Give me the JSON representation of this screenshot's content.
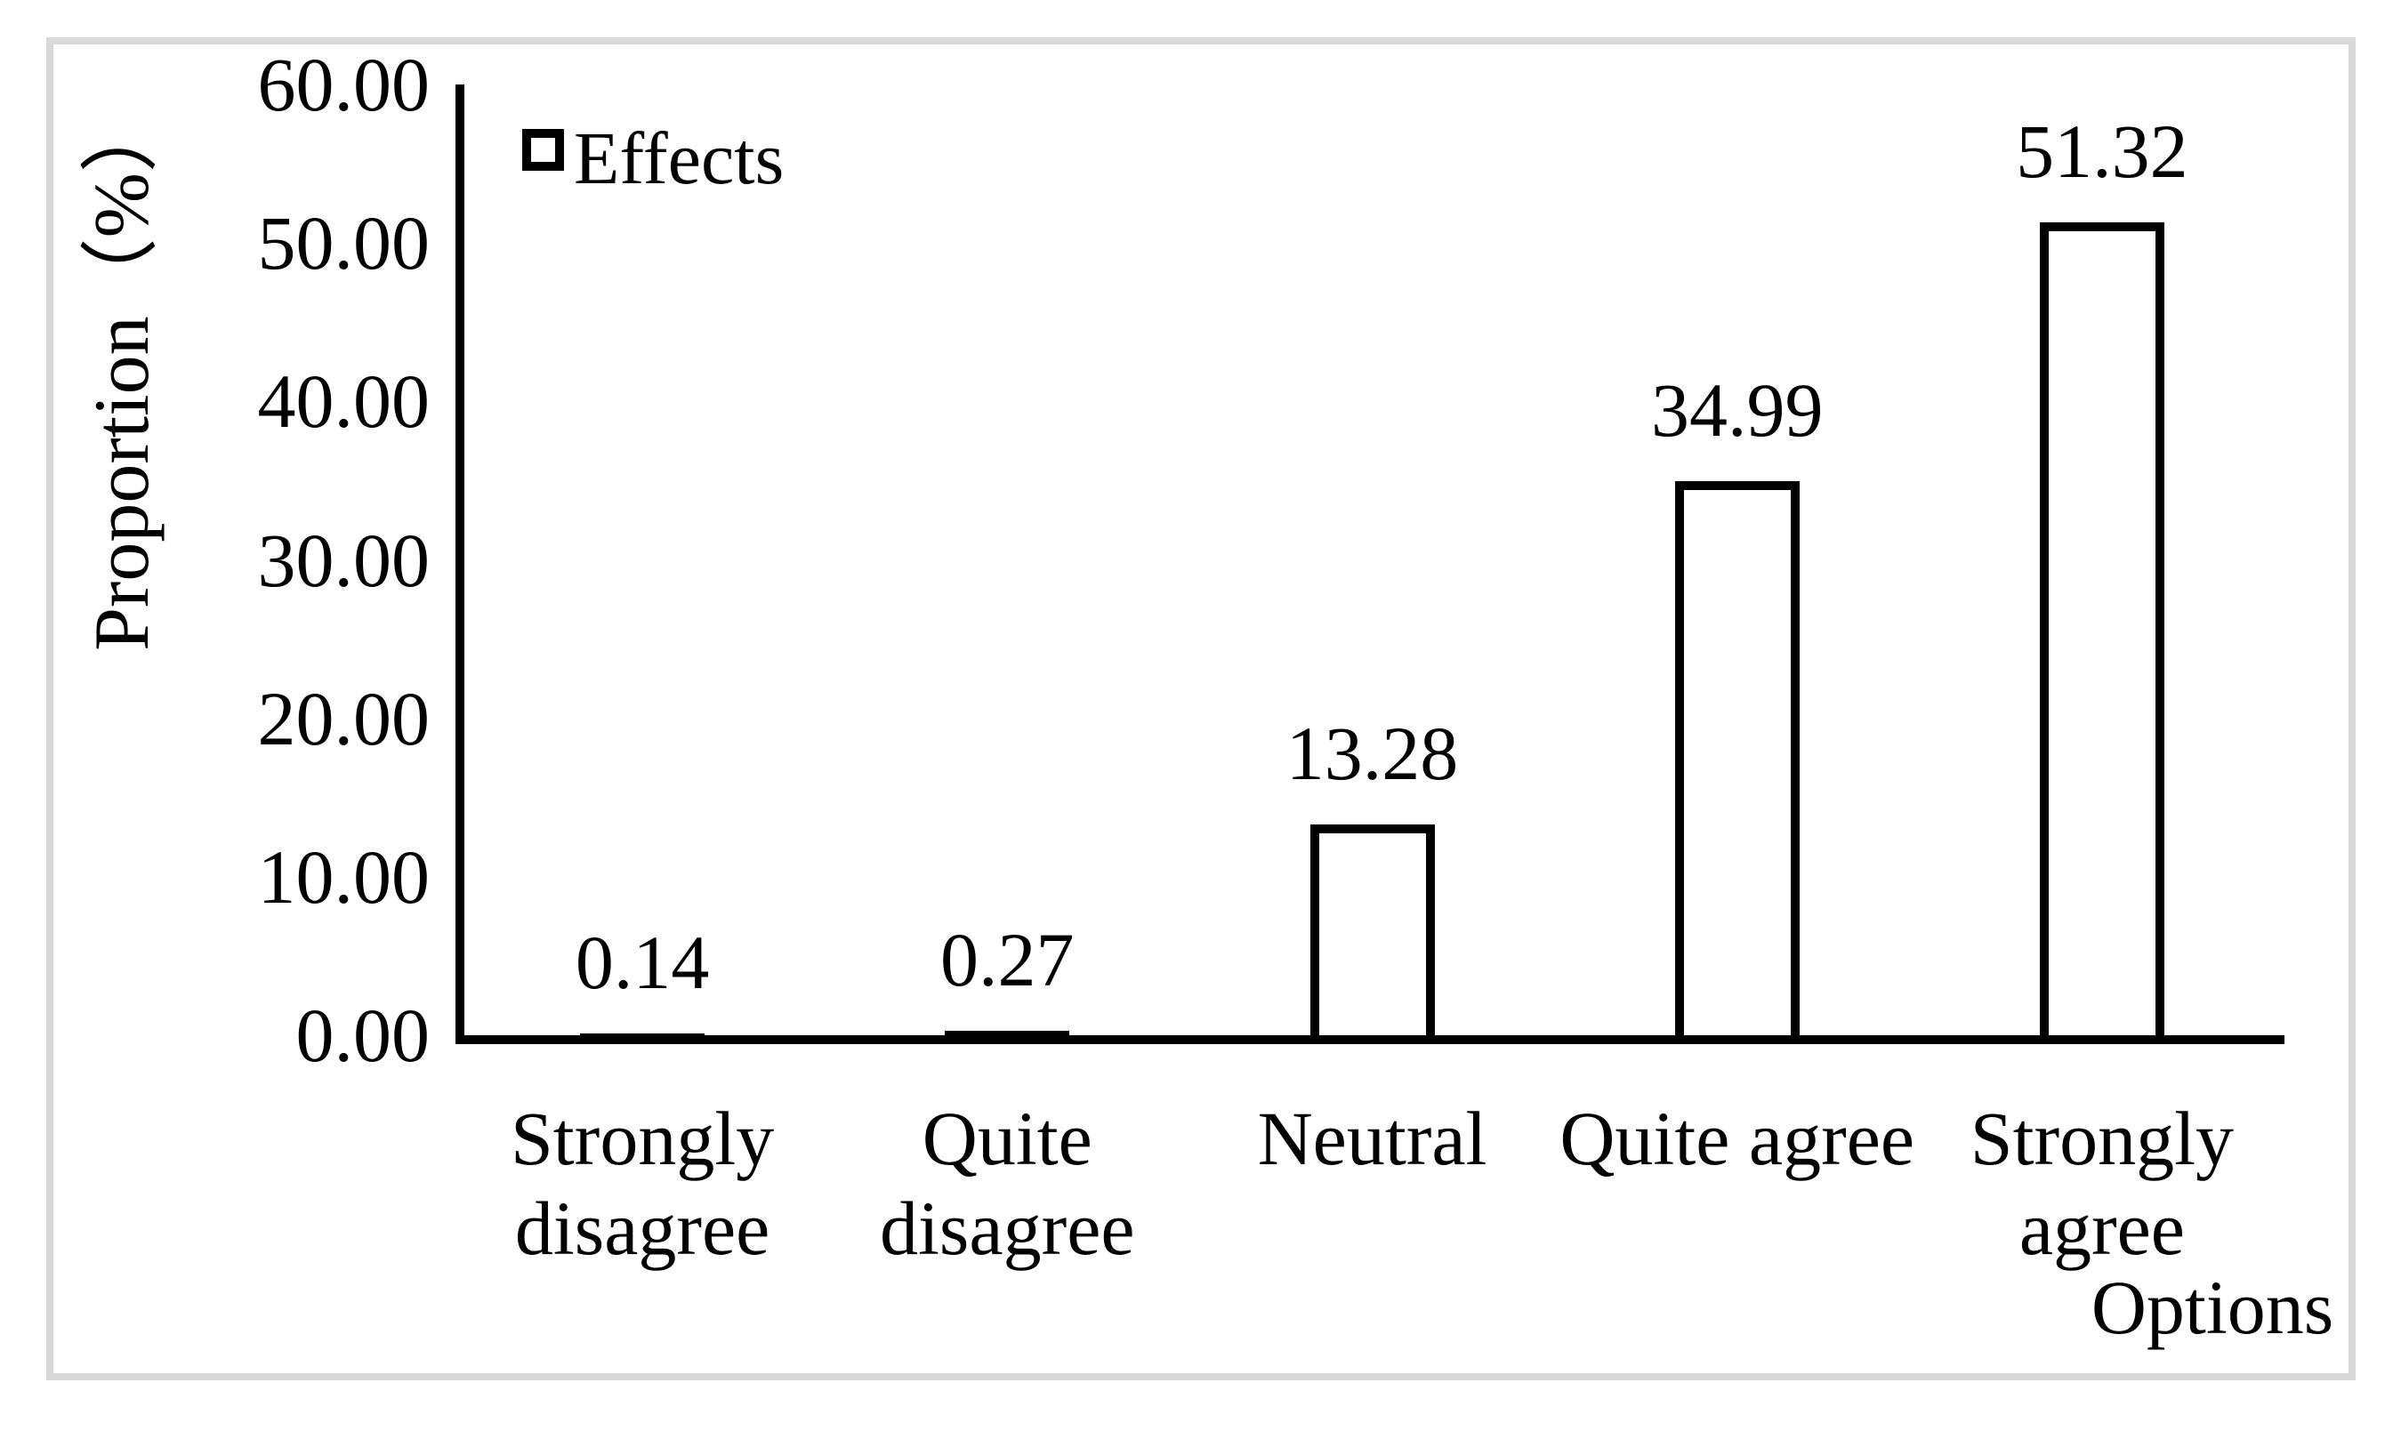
{
  "chart": {
    "legend_label": "Effects",
    "y_axis_title": "Proportion（%）",
    "x_axis_title": "Options"
  },
  "colors": {
    "bar_fill": "#ffffff",
    "bar_border": "#000000",
    "axis": "#000000",
    "text": "#000000",
    "frame_border": "#d9d9d9",
    "background": "#ffffff"
  },
  "chart_data": {
    "type": "bar",
    "title": "",
    "categories": [
      "Strongly disagree",
      "Quite disagree",
      "Neutral",
      "Quite agree",
      "Strongly agree"
    ],
    "series": [
      {
        "name": "Effects",
        "values": [
          0.14,
          0.27,
          13.28,
          34.99,
          51.32
        ]
      }
    ],
    "data_labels": [
      "0.14",
      "0.27",
      "13.28",
      "34.99",
      "51.32"
    ],
    "xlabel": "Options",
    "ylabel": "Proportion（%）",
    "ylim": [
      0,
      60
    ],
    "ytick_interval": 10,
    "ytick_labels": [
      "60.00",
      "50.00",
      "40.00",
      "30.00",
      "20.00",
      "10.00",
      "0.00"
    ],
    "grid": false,
    "legend_position": "top-left",
    "bar_style": {
      "fill": "hollow",
      "outline": "black"
    }
  }
}
